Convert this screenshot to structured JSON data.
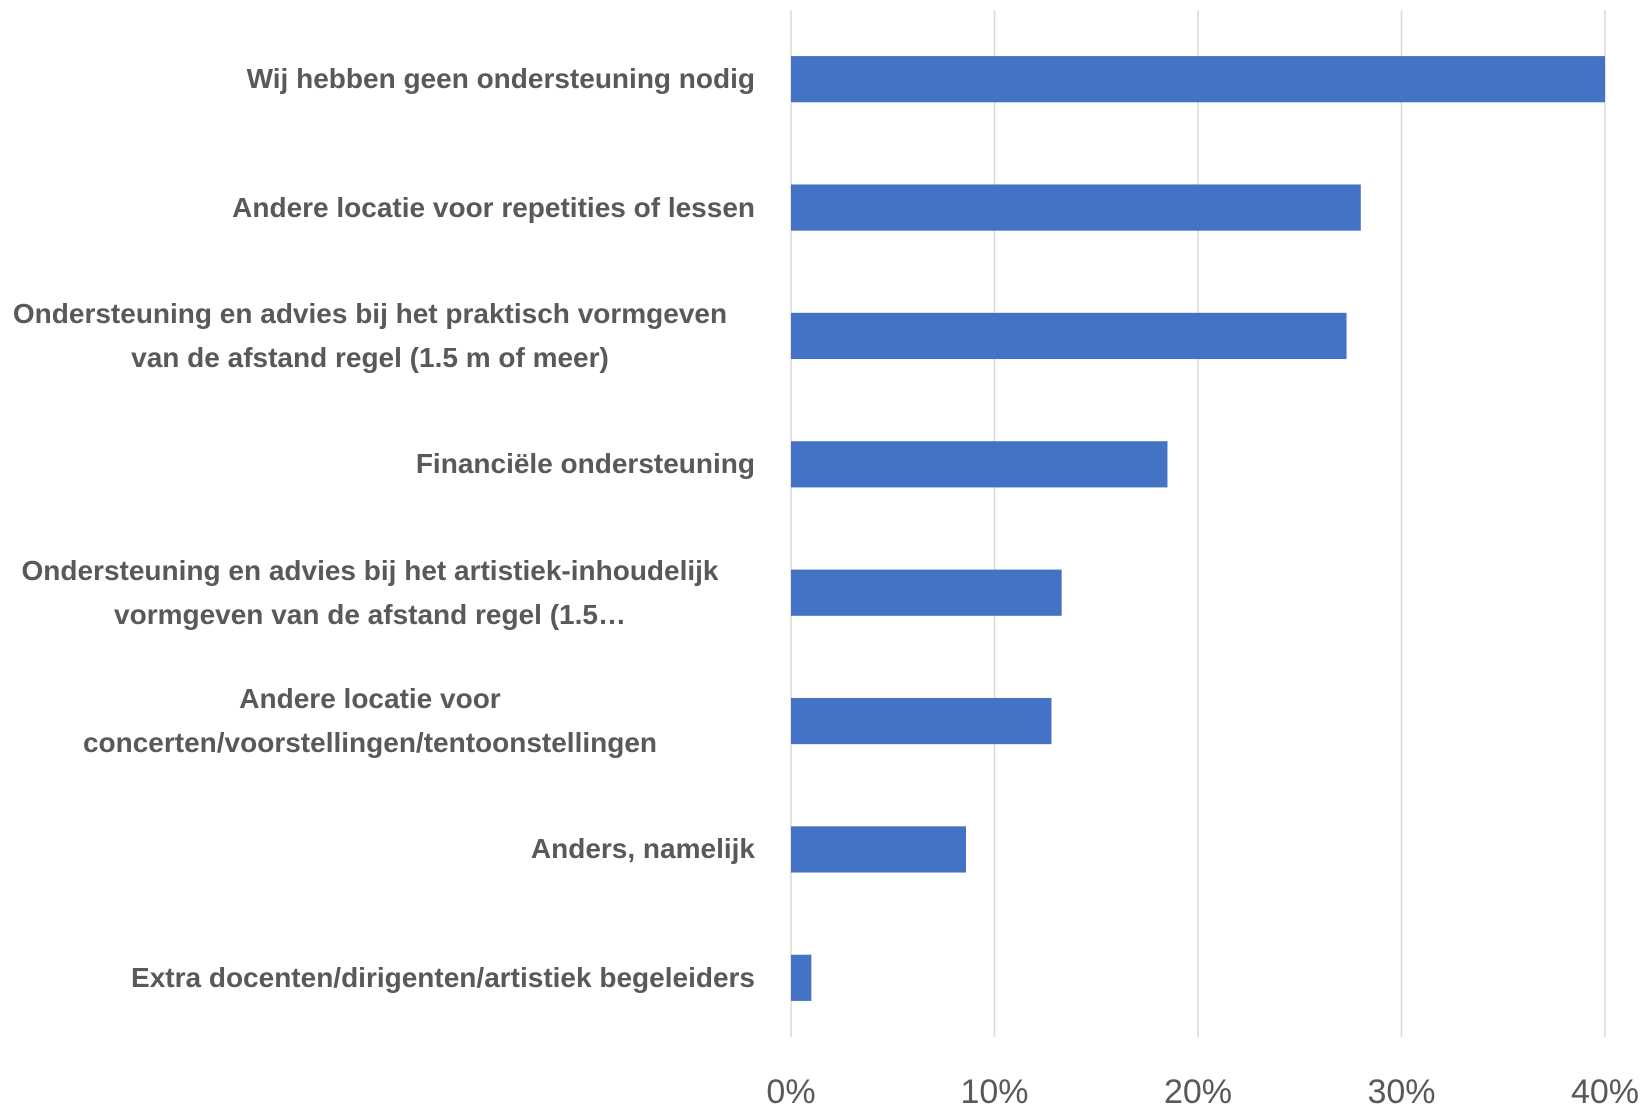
{
  "chart_data": {
    "type": "barh",
    "categories": [
      "Wij hebben geen ondersteuning nodig",
      "Andere locatie voor repetities of lessen",
      "Ondersteuning en advies bij het praktisch vormgeven van de afstand regel (1.5 m of meer)",
      "Financiële ondersteuning",
      "Ondersteuning en advies bij het artistiek-inhoudelijk vormgeven van de afstand regel (1.5…",
      "Andere locatie voor concerten/voorstellingen/tentoonstellingen",
      "Anders, namelijk",
      "Extra docenten/dirigenten/artistiek begeleiders"
    ],
    "values": [
      40.0,
      28.0,
      27.3,
      18.5,
      13.3,
      12.8,
      8.6,
      1.0
    ],
    "color": "#4472c4",
    "xlim": [
      0,
      40
    ],
    "xticks": [
      {
        "value": 0,
        "label": "0%"
      },
      {
        "value": 10,
        "label": "10%"
      },
      {
        "value": 20,
        "label": "20%"
      },
      {
        "value": 30,
        "label": "30%"
      },
      {
        "value": 40,
        "label": "40%"
      }
    ],
    "grid": true
  }
}
